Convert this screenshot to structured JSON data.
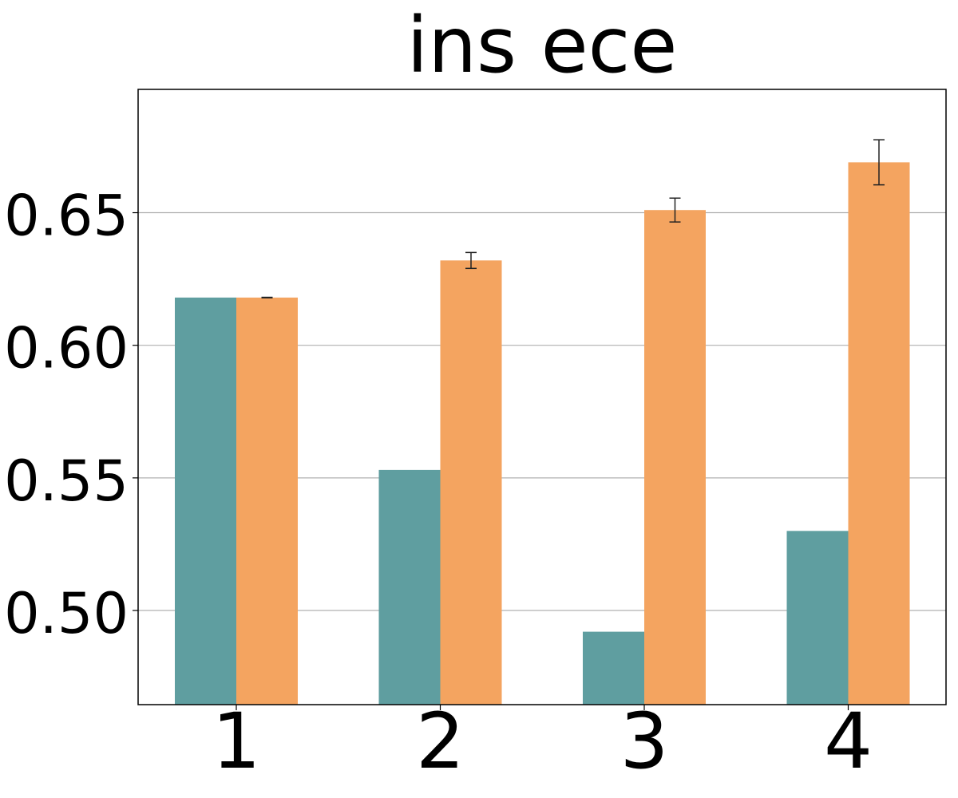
{
  "chart_data": {
    "type": "bar",
    "title": "ins ece",
    "xlabel": "",
    "ylabel": "",
    "categories": [
      "1",
      "2",
      "3",
      "4"
    ],
    "ylim": [
      0.4645,
      0.6965
    ],
    "yticks": [
      0.5,
      0.55,
      0.6,
      0.65
    ],
    "ytick_labels": [
      "0.50",
      "0.55",
      "0.60",
      "0.65"
    ],
    "grid": "y",
    "legend": "none",
    "series": [
      {
        "color": "#5f9ea0",
        "values": [
          0.618,
          0.553,
          0.492,
          0.53
        ]
      },
      {
        "color": "#f4a460",
        "values": [
          0.618,
          0.632,
          0.651,
          0.669
        ],
        "errors": [
          0.0001,
          0.003,
          0.0045,
          0.0085
        ]
      }
    ]
  }
}
